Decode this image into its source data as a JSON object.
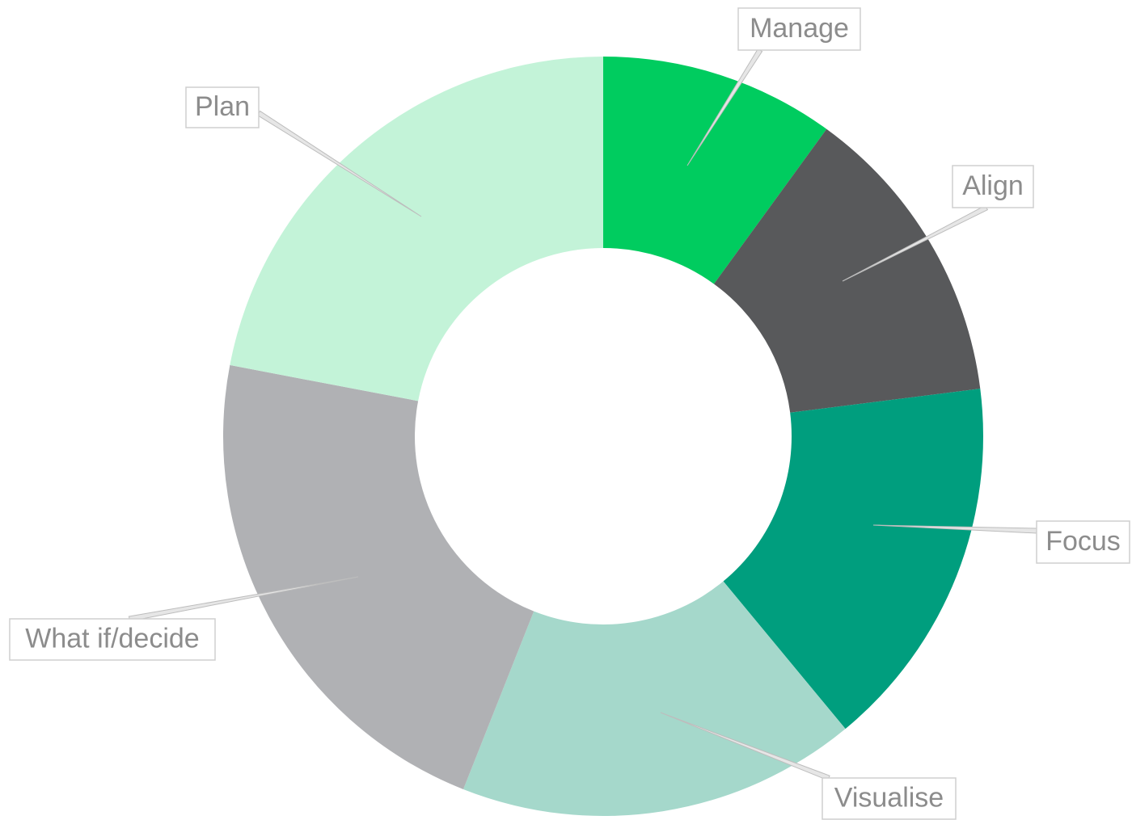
{
  "chart_data": {
    "type": "donut",
    "categories": [
      "Manage",
      "Align",
      "Focus",
      "Visualise",
      "What if/decide",
      "Plan"
    ],
    "values": [
      10,
      13,
      16,
      17,
      22,
      22
    ],
    "colors": [
      "#00cc5f",
      "#58595b",
      "#009e7e",
      "#a5d8cb",
      "#b0b1b4",
      "#c3f3d8"
    ]
  }
}
